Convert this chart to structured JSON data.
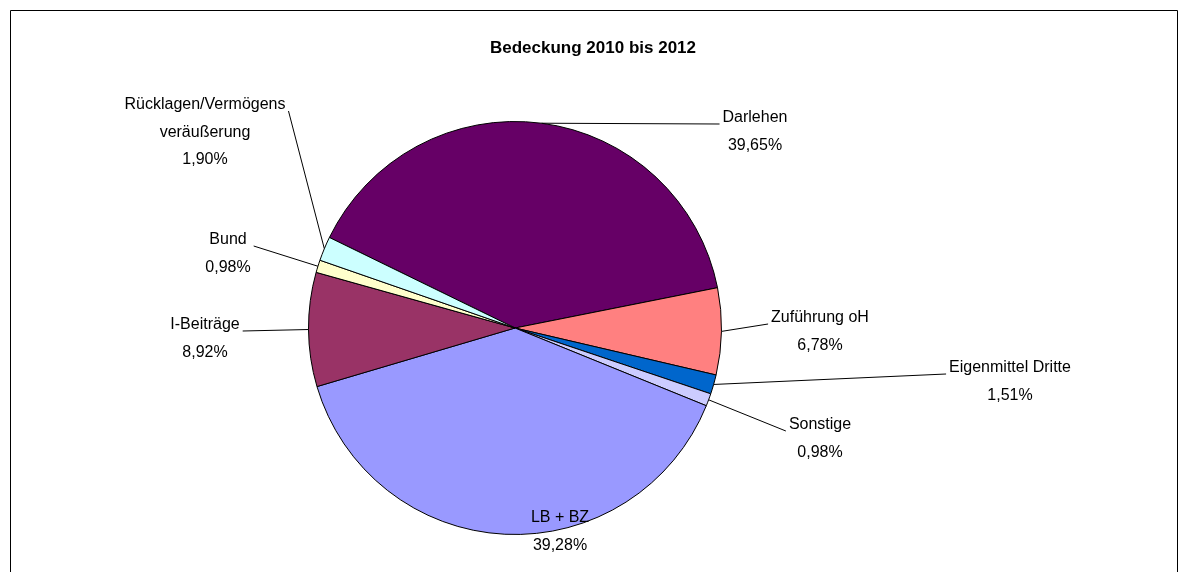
{
  "chart_data": {
    "type": "pie",
    "title": "Bedeckung 2010 bis 2012",
    "categories": [
      "Darlehen",
      "Zuführung oH",
      "Eigenmittel Dritte",
      "Sonstige",
      "LB + BZ",
      "I-Beiträge",
      "Bund",
      "Rücklagen/Vermögens veräußerung"
    ],
    "values": [
      39.65,
      6.78,
      1.51,
      0.98,
      39.28,
      8.92,
      0.98,
      1.9
    ],
    "value_labels": [
      "39,65%",
      "6,78%",
      "1,51%",
      "0,98%",
      "39,28%",
      "8,92%",
      "0,98%",
      "1,90%"
    ],
    "colors": [
      "#660066",
      "#ff8080",
      "#0066cc",
      "#ccccff",
      "#9999ff",
      "#993366",
      "#ffffcc",
      "#ccffff"
    ],
    "legend": false
  }
}
